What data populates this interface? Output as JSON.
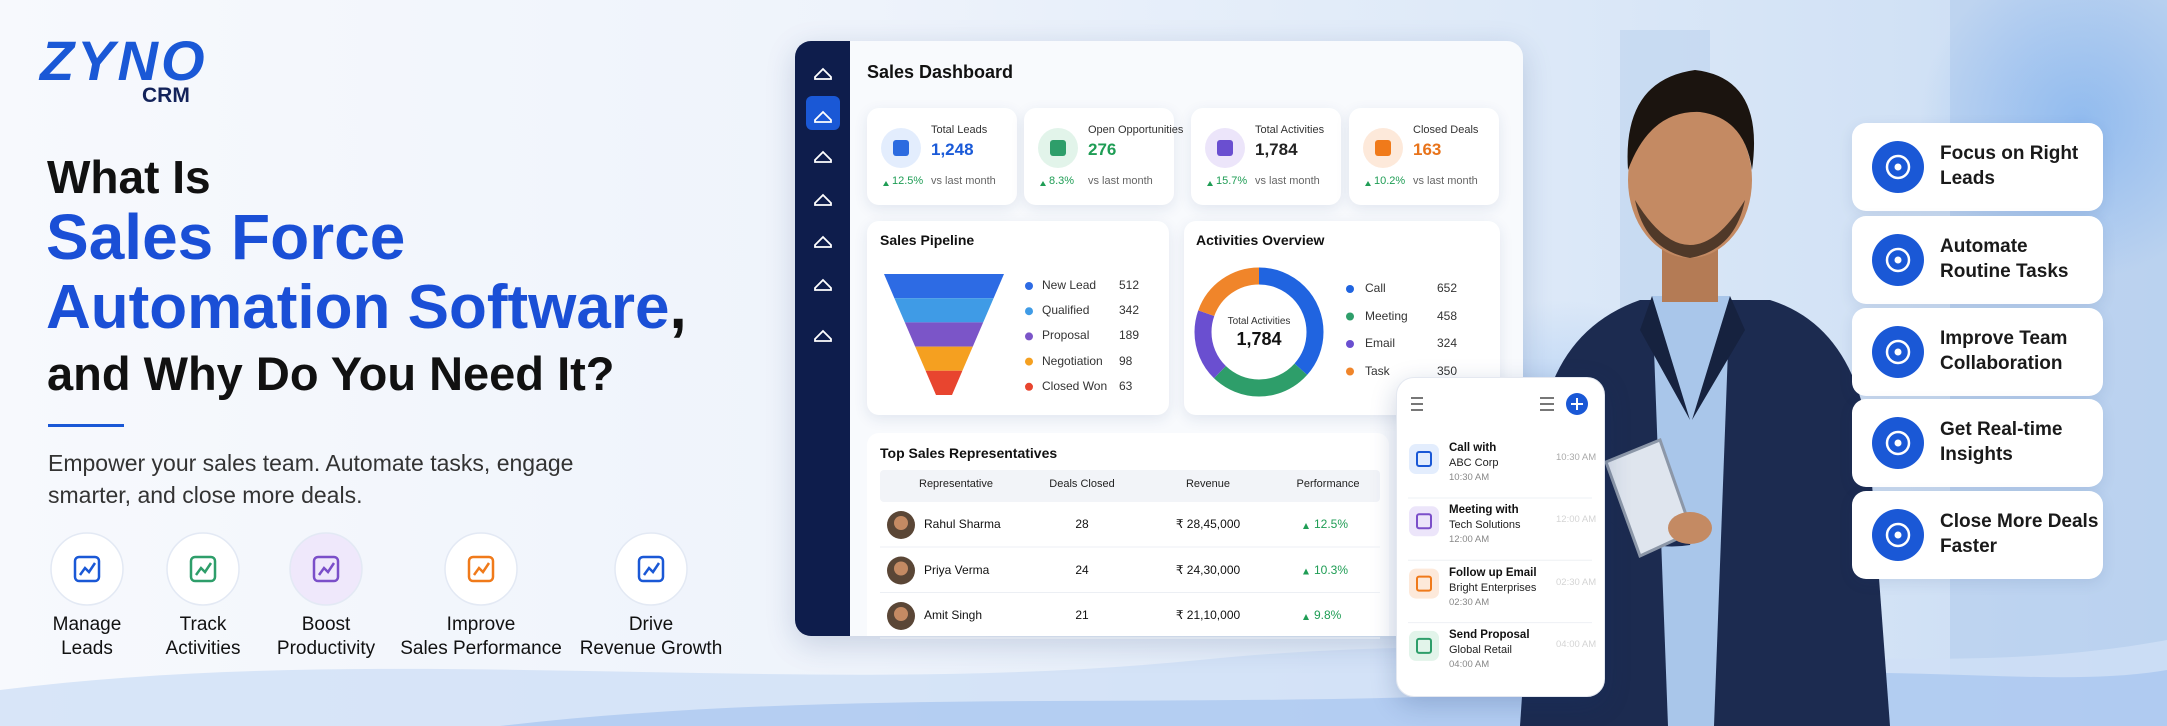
{
  "logo": {
    "brand": "ZYNO",
    "product": "CRM"
  },
  "headline": {
    "intro": "What Is",
    "highlight": [
      "Sales Force",
      "Automation Software"
    ],
    "comma": ",",
    "outro": "and Why Do You Need It?"
  },
  "tagline": [
    "Empower your sales team. Automate tasks, engage",
    "smarter, and close more deals."
  ],
  "benefits": [
    [
      "Manage",
      "Leads"
    ],
    [
      "Track",
      "Activities"
    ],
    [
      "Boost",
      "Productivity"
    ],
    [
      "Improve",
      "Sales Performance"
    ],
    [
      "Drive",
      "Revenue Growth"
    ]
  ],
  "dashboard": {
    "title": "Sales Dashboard",
    "kpis": [
      {
        "label": "Total Leads",
        "value": "1,248",
        "change": "12.5%",
        "note": "vs last month"
      },
      {
        "label": "Open Opportunities",
        "value": "276",
        "change": "8.3%",
        "note": "vs last month"
      },
      {
        "label": "Total Activities",
        "value": "1,784",
        "change": "15.7%",
        "note": "vs last month"
      },
      {
        "label": "Closed Deals",
        "value": "163",
        "change": "10.2%",
        "note": "vs last month"
      }
    ],
    "pipeline": {
      "title": "Sales Pipeline",
      "stages": [
        {
          "name": "New Lead",
          "value": 512,
          "color": "#2d6be4"
        },
        {
          "name": "Qualified",
          "value": 342,
          "color": "#3f9be6"
        },
        {
          "name": "Proposal",
          "value": 189,
          "color": "#7b55c8"
        },
        {
          "name": "Negotiation",
          "value": 98,
          "color": "#f5a020"
        },
        {
          "name": "Closed Won",
          "value": 63,
          "color": "#e8452f"
        }
      ]
    },
    "activities": {
      "type": "donut",
      "title": "Activities Overview",
      "center_label": "Total Activities",
      "center_value": "1,784",
      "items": [
        {
          "name": "Call",
          "value": 652,
          "color": "#2064e0"
        },
        {
          "name": "Meeting",
          "value": 458,
          "color": "#2e9e6a"
        },
        {
          "name": "Email",
          "value": 324,
          "color": "#6a4fd0"
        },
        {
          "name": "Task",
          "value": 350,
          "color": "#f0852a"
        }
      ]
    },
    "reps": {
      "title": "Top Sales Representatives",
      "columns": [
        "Representative",
        "Deals Closed",
        "Revenue",
        "Performance"
      ],
      "rows": [
        [
          "Rahul Sharma",
          28,
          "₹ 28,45,000",
          "12.5%"
        ],
        [
          "Priya Verma",
          24,
          "₹ 24,30,000",
          "10.3%"
        ],
        [
          "Amit Singh",
          21,
          "₹ 21,10,000",
          "9.8%"
        ]
      ]
    }
  },
  "phone": {
    "items": [
      {
        "title": "Call with",
        "subtitle": "ABC Corp",
        "time": "10:30 AM"
      },
      {
        "title": "Meeting with",
        "subtitle": "Tech Solutions",
        "time": "12:00 AM"
      },
      {
        "title": "Follow up Email",
        "subtitle": "Bright Enterprises",
        "time": "02:30 AM"
      },
      {
        "title": "Send Proposal",
        "subtitle": "Global Retail",
        "time": "04:00 AM"
      }
    ]
  },
  "features": [
    [
      "Focus on Right",
      "Leads"
    ],
    [
      "Automate",
      "Routine Tasks"
    ],
    [
      "Improve Team",
      "Collaboration"
    ],
    [
      "Get Real-time",
      "Insights"
    ],
    [
      "Close More Deals",
      "Faster"
    ]
  ]
}
